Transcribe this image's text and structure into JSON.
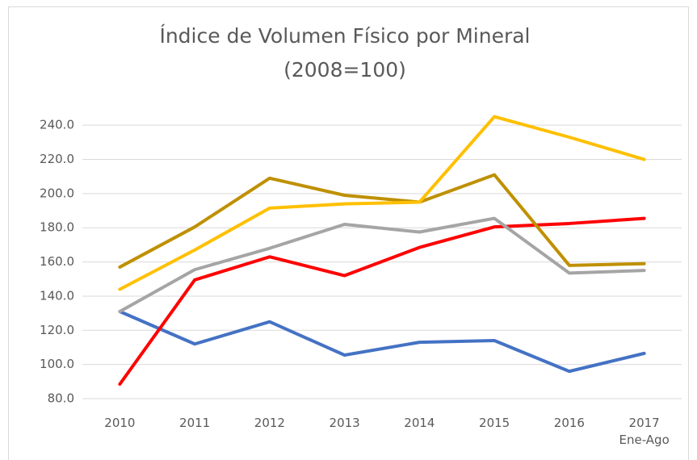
{
  "chart_data": {
    "type": "line",
    "title": "Índice de Volumen Físico por Mineral",
    "subtitle": "(2008=100)",
    "categories": [
      "2010",
      "2011",
      "2012",
      "2013",
      "2014",
      "2015",
      "2016",
      "2017 Ene-Ago"
    ],
    "series": [
      {
        "color": "#4472c4",
        "values": [
          131,
          112,
          125,
          105.5,
          113,
          114,
          96,
          106.5
        ]
      },
      {
        "color": "#ff0000",
        "values": [
          88.5,
          149.5,
          163,
          152,
          168.5,
          180.5,
          182.5,
          185.5
        ]
      },
      {
        "color": "#a5a5a5",
        "values": [
          131,
          155.5,
          168,
          182,
          177.5,
          185.5,
          153.5,
          155
        ]
      },
      {
        "color": "#bf9000",
        "values": [
          157,
          180.5,
          209,
          199,
          195,
          211,
          158,
          159
        ]
      },
      {
        "color": "#ffc000",
        "values": [
          144,
          167,
          191.5,
          194,
          195,
          245,
          233,
          220
        ]
      }
    ],
    "ylim": [
      80,
      250
    ],
    "yticks": [
      {
        "value": 80,
        "label": "80.0"
      },
      {
        "value": 100,
        "label": "100.0"
      },
      {
        "value": 120,
        "label": "120.0"
      },
      {
        "value": 140,
        "label": "140.0"
      },
      {
        "value": 160,
        "label": "160.0"
      },
      {
        "value": 180,
        "label": "180.0"
      },
      {
        "value": 200,
        "label": "200.0"
      },
      {
        "value": 220,
        "label": "220.0"
      },
      {
        "value": 240,
        "label": "240.0"
      }
    ],
    "grid": true
  }
}
